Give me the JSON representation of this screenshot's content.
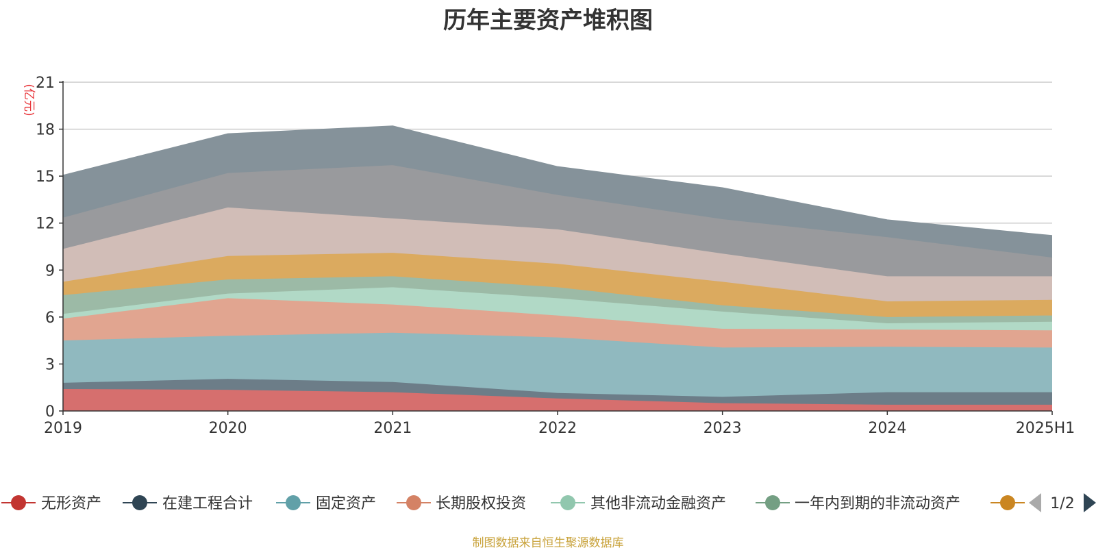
{
  "title": "历年主要资产堆积图",
  "source_note": "制图数据来自恒生聚源数据库",
  "colors": {
    "axis": "#333333",
    "grid": "#cccccc",
    "unit": "#e8353a",
    "source": "#c9a33c",
    "pager_prev": "#aaaaaa",
    "pager_next": "#2f4554"
  },
  "legend": {
    "page": "1/2",
    "prev_icon": "triangle-left-icon",
    "next_icon": "triangle-right-icon"
  },
  "chart_data": {
    "type": "area",
    "stacked": true,
    "unit_label": "(亿元)",
    "categories": [
      "2019",
      "2020",
      "2021",
      "2022",
      "2023",
      "2024",
      "2025H1"
    ],
    "ylim": [
      0,
      21
    ],
    "yticks": [
      0,
      3,
      6,
      9,
      12,
      15,
      18,
      21
    ],
    "grid": true,
    "legend_position": "bottom",
    "series": [
      {
        "name": "无形资产",
        "color": "#c23531",
        "area_color": "#d66f6e",
        "in_legend": true,
        "values": [
          1.4,
          1.35,
          1.2,
          0.8,
          0.5,
          0.4,
          0.4
        ]
      },
      {
        "name": "在建工程合计",
        "color": "#2f4554",
        "area_color": "#6c7d88",
        "in_legend": true,
        "values": [
          0.4,
          0.7,
          0.65,
          0.35,
          0.4,
          0.8,
          0.8
        ]
      },
      {
        "name": "固定资产",
        "color": "#61a0a8",
        "area_color": "#90b9bf",
        "in_legend": true,
        "values": [
          2.7,
          2.75,
          3.15,
          3.55,
          3.15,
          2.9,
          2.85
        ]
      },
      {
        "name": "长期股权投资",
        "color": "#d48265",
        "area_color": "#e1a590",
        "in_legend": true,
        "values": [
          1.4,
          2.4,
          1.8,
          1.4,
          1.2,
          1.1,
          1.1
        ]
      },
      {
        "name": "其他非流动金融资产",
        "color": "#91c7ae",
        "area_color": "#b1d9c6",
        "in_legend": true,
        "values": [
          0.3,
          0.3,
          1.1,
          1.1,
          1.1,
          0.4,
          0.55
        ]
      },
      {
        "name": "一年内到期的非流动资产",
        "color": "#749f83",
        "area_color": "#9cbaa6",
        "in_legend": true,
        "values": [
          1.2,
          0.9,
          0.7,
          0.7,
          0.4,
          0.4,
          0.4
        ]
      },
      {
        "name": "",
        "color": "#ca8622",
        "area_color": "#dbaa5f",
        "in_legend": true,
        "values": [
          0.85,
          1.5,
          1.5,
          1.5,
          1.5,
          1.0,
          1.0
        ]
      },
      {
        "name": "",
        "color": "#bda29a",
        "area_color": "#d1bdb7",
        "in_legend": false,
        "values": [
          2.1,
          3.1,
          2.2,
          2.2,
          1.8,
          1.6,
          1.5
        ]
      },
      {
        "name": "",
        "color": "#6e7074",
        "area_color": "#999a9d",
        "in_legend": false,
        "values": [
          2.0,
          2.2,
          3.4,
          2.2,
          2.2,
          2.5,
          1.2
        ]
      },
      {
        "name": "",
        "color": "#546570",
        "area_color": "#85929a",
        "in_legend": false,
        "values": [
          2.7,
          2.5,
          2.5,
          1.8,
          2.0,
          1.1,
          1.4
        ]
      }
    ]
  }
}
